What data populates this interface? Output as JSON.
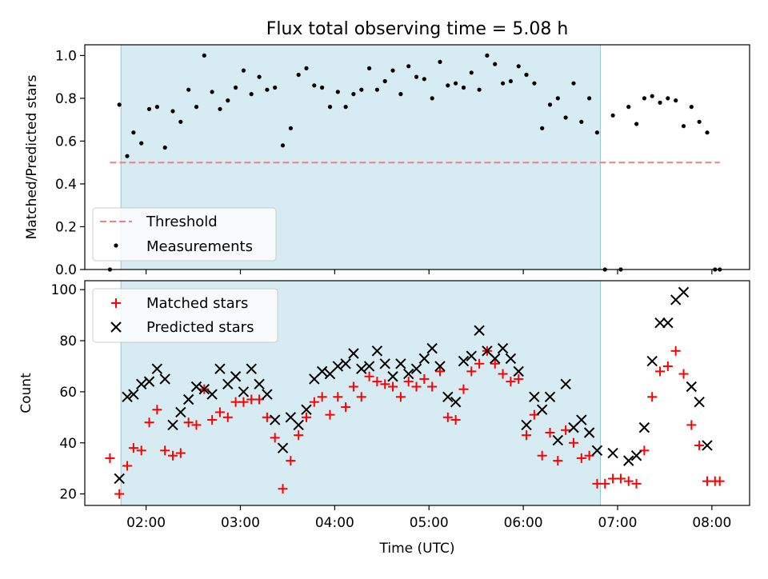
{
  "figure": {
    "title": "Flux total observing time = 5.08 h"
  },
  "chart_data": [
    {
      "type": "scatter",
      "panel": "top",
      "xlabel": "",
      "ylabel": "Matched/Predicted stars",
      "xlim": [
        "01:21",
        "08:24"
      ],
      "ylim": [
        0,
        1.05
      ],
      "yticks": [
        "0.0",
        "0.2",
        "0.4",
        "0.6",
        "0.8",
        "1.0"
      ],
      "grid": false,
      "legend_position": "lower-left",
      "shaded_interval": [
        "01:44",
        "06:49"
      ],
      "threshold": {
        "name": "Threshold",
        "value": 0.5,
        "x_range": [
          "01:37",
          "08:05"
        ],
        "color": "#f08080"
      },
      "series": [
        {
          "name": "Measurements",
          "color": "#000000",
          "marker": "dot",
          "x": [
            "01:37",
            "01:43",
            "01:48",
            "01:52",
            "01:57",
            "02:02",
            "02:07",
            "02:12",
            "02:17",
            "02:22",
            "02:27",
            "02:32",
            "02:37",
            "02:42",
            "02:47",
            "02:52",
            "02:57",
            "03:02",
            "03:07",
            "03:12",
            "03:17",
            "03:22",
            "03:27",
            "03:32",
            "03:37",
            "03:42",
            "03:47",
            "03:52",
            "03:57",
            "04:02",
            "04:07",
            "04:12",
            "04:17",
            "04:22",
            "04:27",
            "04:32",
            "04:37",
            "04:42",
            "04:47",
            "04:52",
            "04:57",
            "05:02",
            "05:07",
            "05:12",
            "05:17",
            "05:22",
            "05:27",
            "05:32",
            "05:37",
            "05:42",
            "05:47",
            "05:52",
            "05:57",
            "06:02",
            "06:07",
            "06:12",
            "06:17",
            "06:22",
            "06:27",
            "06:32",
            "06:37",
            "06:42",
            "06:47",
            "06:52",
            "06:57",
            "07:02",
            "07:07",
            "07:12",
            "07:17",
            "07:22",
            "07:27",
            "07:32",
            "07:37",
            "07:42",
            "07:47",
            "07:52",
            "07:57",
            "08:02",
            "08:05"
          ],
          "y": [
            0.0,
            0.77,
            0.53,
            0.64,
            0.59,
            0.75,
            0.76,
            0.57,
            0.74,
            0.69,
            0.84,
            0.76,
            1.0,
            0.83,
            0.75,
            0.79,
            0.85,
            0.93,
            0.82,
            0.9,
            0.84,
            0.85,
            0.58,
            0.66,
            0.91,
            0.94,
            0.86,
            0.85,
            0.76,
            0.83,
            0.76,
            0.82,
            0.84,
            0.94,
            0.84,
            0.88,
            0.93,
            0.82,
            0.95,
            0.9,
            0.89,
            0.8,
            0.97,
            0.86,
            0.87,
            0.85,
            0.92,
            0.84,
            1.0,
            0.96,
            0.87,
            0.88,
            0.95,
            0.91,
            0.87,
            0.66,
            0.77,
            0.8,
            0.71,
            0.87,
            0.69,
            0.8,
            0.64,
            0.0,
            0.72,
            0.0,
            0.76,
            0.68,
            0.8,
            0.81,
            0.78,
            0.8,
            0.79,
            0.67,
            0.76,
            0.69,
            0.64,
            0.0,
            0.0
          ]
        }
      ]
    },
    {
      "type": "scatter",
      "panel": "bottom",
      "xlabel": "Time (UTC)",
      "ylabel": "Count",
      "xlim": [
        "01:21",
        "08:24"
      ],
      "ylim": [
        15.5,
        103.5
      ],
      "xticks": [
        "02:00",
        "03:00",
        "04:00",
        "05:00",
        "06:00",
        "07:00",
        "08:00"
      ],
      "yticks": [
        "20",
        "40",
        "60",
        "80",
        "100"
      ],
      "grid": false,
      "legend_position": "upper-left",
      "shaded_interval": [
        "01:44",
        "06:49"
      ],
      "series": [
        {
          "name": "Matched stars",
          "color": "#ff0000",
          "marker": "plus",
          "x": [
            "01:37",
            "01:43",
            "01:48",
            "01:52",
            "01:57",
            "02:02",
            "02:07",
            "02:12",
            "02:17",
            "02:22",
            "02:27",
            "02:32",
            "02:37",
            "02:42",
            "02:47",
            "02:52",
            "02:57",
            "03:02",
            "03:07",
            "03:12",
            "03:17",
            "03:22",
            "03:27",
            "03:32",
            "03:37",
            "03:42",
            "03:47",
            "03:52",
            "03:57",
            "04:02",
            "04:07",
            "04:12",
            "04:17",
            "04:22",
            "04:27",
            "04:32",
            "04:37",
            "04:42",
            "04:47",
            "04:52",
            "04:57",
            "05:02",
            "05:07",
            "05:12",
            "05:17",
            "05:22",
            "05:27",
            "05:32",
            "05:37",
            "05:42",
            "05:47",
            "05:52",
            "05:57",
            "06:02",
            "06:07",
            "06:12",
            "06:17",
            "06:22",
            "06:27",
            "06:32",
            "06:37",
            "06:42",
            "06:47",
            "06:52",
            "06:57",
            "07:02",
            "07:07",
            "07:12",
            "07:17",
            "07:22",
            "07:27",
            "07:32",
            "07:37",
            "07:42",
            "07:47",
            "07:52",
            "07:57",
            "08:02",
            "08:05"
          ],
          "y": [
            34,
            20,
            31,
            38,
            37,
            48,
            53,
            37,
            35,
            36,
            48,
            47,
            61,
            49,
            52,
            50,
            56,
            56,
            57,
            57,
            50,
            42,
            22,
            33,
            43,
            50,
            56,
            58,
            51,
            58,
            54,
            62,
            58,
            66,
            64,
            63,
            62,
            58,
            64,
            62,
            65,
            62,
            68,
            50,
            49,
            61,
            68,
            71,
            76,
            71,
            67,
            64,
            65,
            43,
            51,
            35,
            44,
            33,
            45,
            40,
            34,
            35,
            24,
            24,
            26,
            26,
            25,
            24,
            37,
            58,
            68,
            70,
            76,
            67,
            47,
            39,
            25,
            25,
            25
          ]
        },
        {
          "name": "Predicted stars",
          "color": "#000000",
          "marker": "x",
          "x": [
            "01:43",
            "01:48",
            "01:52",
            "01:57",
            "02:02",
            "02:07",
            "02:12",
            "02:17",
            "02:22",
            "02:27",
            "02:32",
            "02:37",
            "02:42",
            "02:47",
            "02:52",
            "02:57",
            "03:02",
            "03:07",
            "03:12",
            "03:17",
            "03:22",
            "03:27",
            "03:32",
            "03:37",
            "03:42",
            "03:47",
            "03:52",
            "03:57",
            "04:02",
            "04:07",
            "04:12",
            "04:17",
            "04:22",
            "04:27",
            "04:32",
            "04:37",
            "04:42",
            "04:47",
            "04:52",
            "04:57",
            "05:02",
            "05:07",
            "05:12",
            "05:17",
            "05:22",
            "05:27",
            "05:32",
            "05:37",
            "05:42",
            "05:47",
            "05:52",
            "05:57",
            "06:02",
            "06:07",
            "06:12",
            "06:17",
            "06:22",
            "06:27",
            "06:32",
            "06:37",
            "06:42",
            "06:47",
            "06:57",
            "07:07",
            "07:12",
            "07:17",
            "07:22",
            "07:27",
            "07:32",
            "07:37",
            "07:42",
            "07:47",
            "07:52",
            "07:57"
          ],
          "y": [
            26,
            58,
            59,
            63,
            64,
            69,
            65,
            47,
            52,
            57,
            62,
            61,
            59,
            69,
            63,
            66,
            60,
            69,
            63,
            59,
            49,
            38,
            50,
            47,
            53,
            65,
            68,
            67,
            70,
            71,
            75,
            69,
            70,
            76,
            71,
            66,
            71,
            67,
            69,
            73,
            77,
            70,
            58,
            56,
            72,
            74,
            84,
            76,
            73,
            77,
            73,
            68,
            47,
            58,
            53,
            58,
            41,
            63,
            46,
            49,
            44,
            37,
            36,
            33,
            35,
            46,
            72,
            87,
            87,
            96,
            99,
            62,
            56,
            39
          ]
        }
      ]
    }
  ]
}
